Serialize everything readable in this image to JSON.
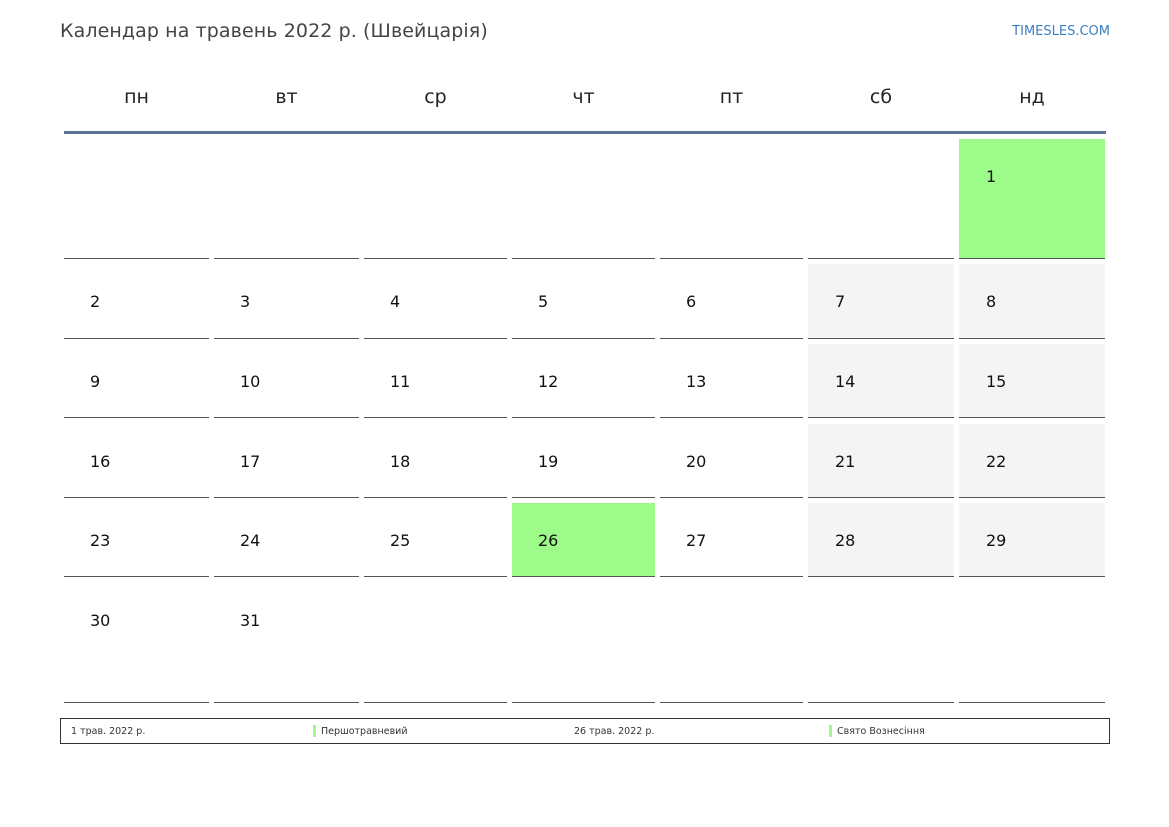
{
  "header": {
    "title": "Календар на травень 2022 р. (Швейцарія)",
    "site": "TIMESLES.COM"
  },
  "weekdays": [
    "пн",
    "вт",
    "ср",
    "чт",
    "пт",
    "сб",
    "нд"
  ],
  "weeks": [
    [
      "",
      "",
      "",
      "",
      "",
      "",
      "1"
    ],
    [
      "2",
      "3",
      "4",
      "5",
      "6",
      "7",
      "8"
    ],
    [
      "9",
      "10",
      "11",
      "12",
      "13",
      "14",
      "15"
    ],
    [
      "16",
      "17",
      "18",
      "19",
      "20",
      "21",
      "22"
    ],
    [
      "23",
      "24",
      "25",
      "26",
      "27",
      "28",
      "29"
    ],
    [
      "30",
      "31",
      "",
      "",
      "",
      "",
      ""
    ]
  ],
  "holiday_days": [
    "1",
    "26"
  ],
  "colors": {
    "holiday": "#9dfc89",
    "weekend": "#f4f4f4",
    "header_rule": "#5b7396",
    "link": "#3a7fc1"
  },
  "legend": [
    {
      "date": "1 трав. 2022 р.",
      "name": "Першотравневий"
    },
    {
      "date": "26 трав. 2022 р.",
      "name": "Свято Вознесіння"
    }
  ]
}
